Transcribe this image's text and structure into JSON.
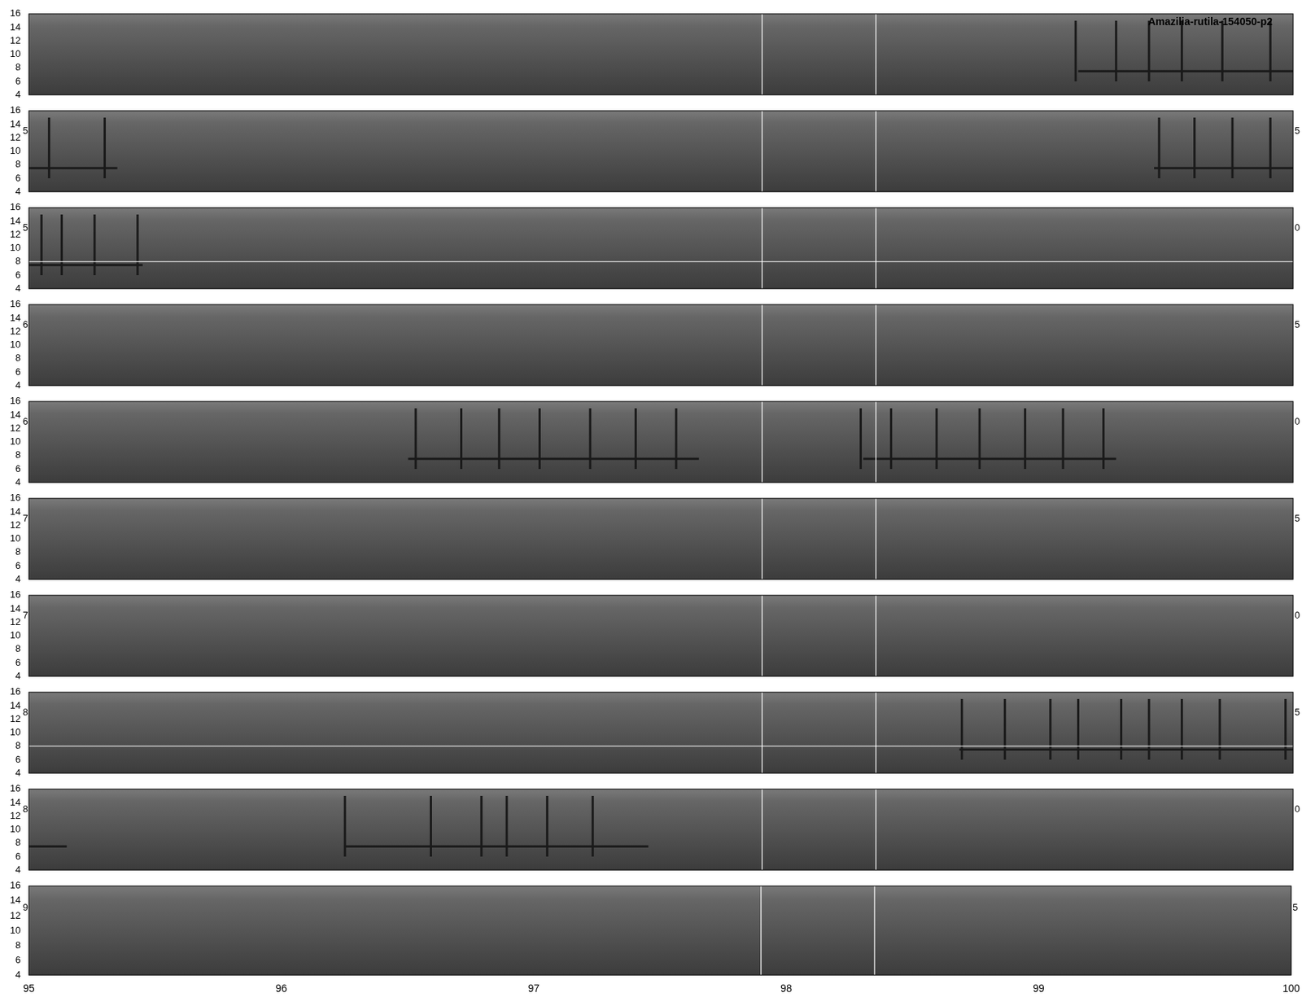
{
  "chart_data": [
    {
      "type": "line",
      "title": "Amazilia-rutila-154050-p2",
      "xlim": [
        95,
        100
      ],
      "xticks": [
        95,
        96,
        97,
        98,
        99,
        100
      ],
      "ylim": [
        4,
        16
      ],
      "yticks": [
        4,
        6,
        8,
        10,
        12,
        14,
        16
      ],
      "tick_labels": "y",
      "color": "#1a1a1a",
      "syllables": [
        99.14,
        99.3,
        99.43,
        99.56,
        99.72,
        99.91
      ],
      "syllable_freq": [
        6,
        15
      ],
      "bands": [
        [
          99.15,
          100
        ]
      ],
      "band_freq": 7.5,
      "vlines": [
        97.9,
        98.35
      ]
    },
    {
      "type": "line",
      "xlim": [
        95,
        100
      ],
      "xticks": [
        95,
        96,
        97,
        98,
        99,
        100
      ],
      "ylim": [
        4,
        16
      ],
      "yticks": [
        4,
        6,
        8,
        10,
        12,
        14,
        16
      ],
      "tick_labels": "y",
      "color": "#1a1a1a",
      "syllables": [
        95.08,
        95.3,
        99.47,
        99.61,
        99.76,
        99.91
      ],
      "syllable_freq": [
        6,
        15
      ],
      "bands": [
        [
          95,
          95.35
        ],
        [
          99.45,
          100
        ]
      ],
      "band_freq": 7.5,
      "vlines": [
        97.9,
        98.35
      ],
      "left_label": "5",
      "right_label": "5"
    },
    {
      "type": "line",
      "xlim": [
        95,
        100
      ],
      "xticks": [
        95,
        96,
        97,
        98,
        99,
        100
      ],
      "ylim": [
        4,
        16
      ],
      "yticks": [
        4,
        6,
        8,
        10,
        12,
        14,
        16
      ],
      "tick_labels": "y",
      "color": "#1a1a1a",
      "syllables": [
        95.05,
        95.13,
        95.26,
        95.43
      ],
      "syllable_freq": [
        6,
        15
      ],
      "bands": [
        [
          95,
          95.45
        ]
      ],
      "band_freq": 7.5,
      "vlines": [
        97.9,
        98.35
      ],
      "hline": 8,
      "left_label": "5",
      "right_label": "0"
    },
    {
      "type": "line",
      "xlim": [
        95,
        100
      ],
      "xticks": [
        95,
        96,
        97,
        98,
        99,
        100
      ],
      "ylim": [
        4,
        16
      ],
      "yticks": [
        4,
        6,
        8,
        10,
        12,
        14,
        16
      ],
      "tick_labels": "y",
      "color": "#1a1a1a",
      "syllables": [],
      "syllable_freq": [
        6,
        15
      ],
      "bands": [],
      "band_freq": 7.5,
      "vlines": [
        97.9,
        98.35
      ],
      "left_label": "6",
      "right_label": "5"
    },
    {
      "type": "line",
      "xlim": [
        95,
        100
      ],
      "xticks": [
        95,
        96,
        97,
        98,
        99,
        100
      ],
      "ylim": [
        4,
        16
      ],
      "yticks": [
        4,
        6,
        8,
        10,
        12,
        14,
        16
      ],
      "tick_labels": "y",
      "color": "#1a1a1a",
      "syllables": [
        96.53,
        96.71,
        96.86,
        97.02,
        97.22,
        97.4,
        97.56,
        98.29,
        98.41,
        98.59,
        98.76,
        98.94,
        99.09,
        99.25
      ],
      "syllable_freq": [
        6,
        15
      ],
      "bands": [
        [
          96.5,
          97.65
        ],
        [
          98.3,
          99.3
        ]
      ],
      "band_freq": 7.5,
      "vlines": [
        97.9,
        98.35
      ],
      "left_label": "6",
      "right_label": "0"
    },
    {
      "type": "line",
      "xlim": [
        95,
        100
      ],
      "xticks": [
        95,
        96,
        97,
        98,
        99,
        100
      ],
      "ylim": [
        4,
        16
      ],
      "yticks": [
        4,
        6,
        8,
        10,
        12,
        14,
        16
      ],
      "tick_labels": "y",
      "color": "#1a1a1a",
      "syllables": [],
      "syllable_freq": [
        6,
        15
      ],
      "bands": [],
      "band_freq": 7.5,
      "vlines": [
        97.9,
        98.35
      ],
      "left_label": "7",
      "right_label": "5"
    },
    {
      "type": "line",
      "xlim": [
        95,
        100
      ],
      "xticks": [
        95,
        96,
        97,
        98,
        99,
        100
      ],
      "ylim": [
        4,
        16
      ],
      "yticks": [
        4,
        6,
        8,
        10,
        12,
        14,
        16
      ],
      "tick_labels": "y",
      "color": "#1a1a1a",
      "syllables": [],
      "syllable_freq": [
        6,
        15
      ],
      "bands": [],
      "band_freq": 7.5,
      "vlines": [
        97.9,
        98.35
      ],
      "left_label": "7",
      "right_label": "0"
    },
    {
      "type": "line",
      "xlim": [
        95,
        100
      ],
      "xticks": [
        95,
        96,
        97,
        98,
        99,
        100
      ],
      "ylim": [
        4,
        16
      ],
      "yticks": [
        4,
        6,
        8,
        10,
        12,
        14,
        16
      ],
      "tick_labels": "y",
      "color": "#1a1a1a",
      "syllables": [
        98.69,
        98.86,
        99.04,
        99.15,
        99.32,
        99.43,
        99.56,
        99.71,
        99.97
      ],
      "syllable_freq": [
        6,
        15
      ],
      "bands": [
        [
          98.68,
          100
        ]
      ],
      "band_freq": 7.5,
      "vlines": [
        97.9,
        98.35
      ],
      "hline": 8,
      "left_label": "8",
      "right_label": "5"
    },
    {
      "type": "line",
      "xlim": [
        95,
        100
      ],
      "xticks": [
        95,
        96,
        97,
        98,
        99,
        100
      ],
      "ylim": [
        4,
        16
      ],
      "yticks": [
        4,
        6,
        8,
        10,
        12,
        14,
        16
      ],
      "tick_labels": "y",
      "color": "#1a1a1a",
      "syllables": [
        96.25,
        96.59,
        96.79,
        96.89,
        97.05,
        97.23
      ],
      "syllable_freq": [
        6,
        15
      ],
      "bands": [
        [
          95,
          95.15
        ],
        [
          96.25,
          97.45
        ]
      ],
      "band_freq": 7.5,
      "vlines": [
        97.9,
        98.35
      ],
      "left_label": "8",
      "right_label": "0"
    },
    {
      "type": "line",
      "xlim": [
        95,
        100
      ],
      "xticks": [
        95,
        96,
        97,
        98,
        99,
        100
      ],
      "ylim": [
        4,
        16
      ],
      "yticks": [
        4,
        6,
        8,
        10,
        12,
        14,
        16
      ],
      "color": "#1a1a1a",
      "syllables": [],
      "syllable_freq": [
        6,
        15
      ],
      "bands": [],
      "band_freq": 7.5,
      "vlines": [
        97.9,
        98.35
      ],
      "left_label": "9",
      "right_label": "5"
    }
  ]
}
